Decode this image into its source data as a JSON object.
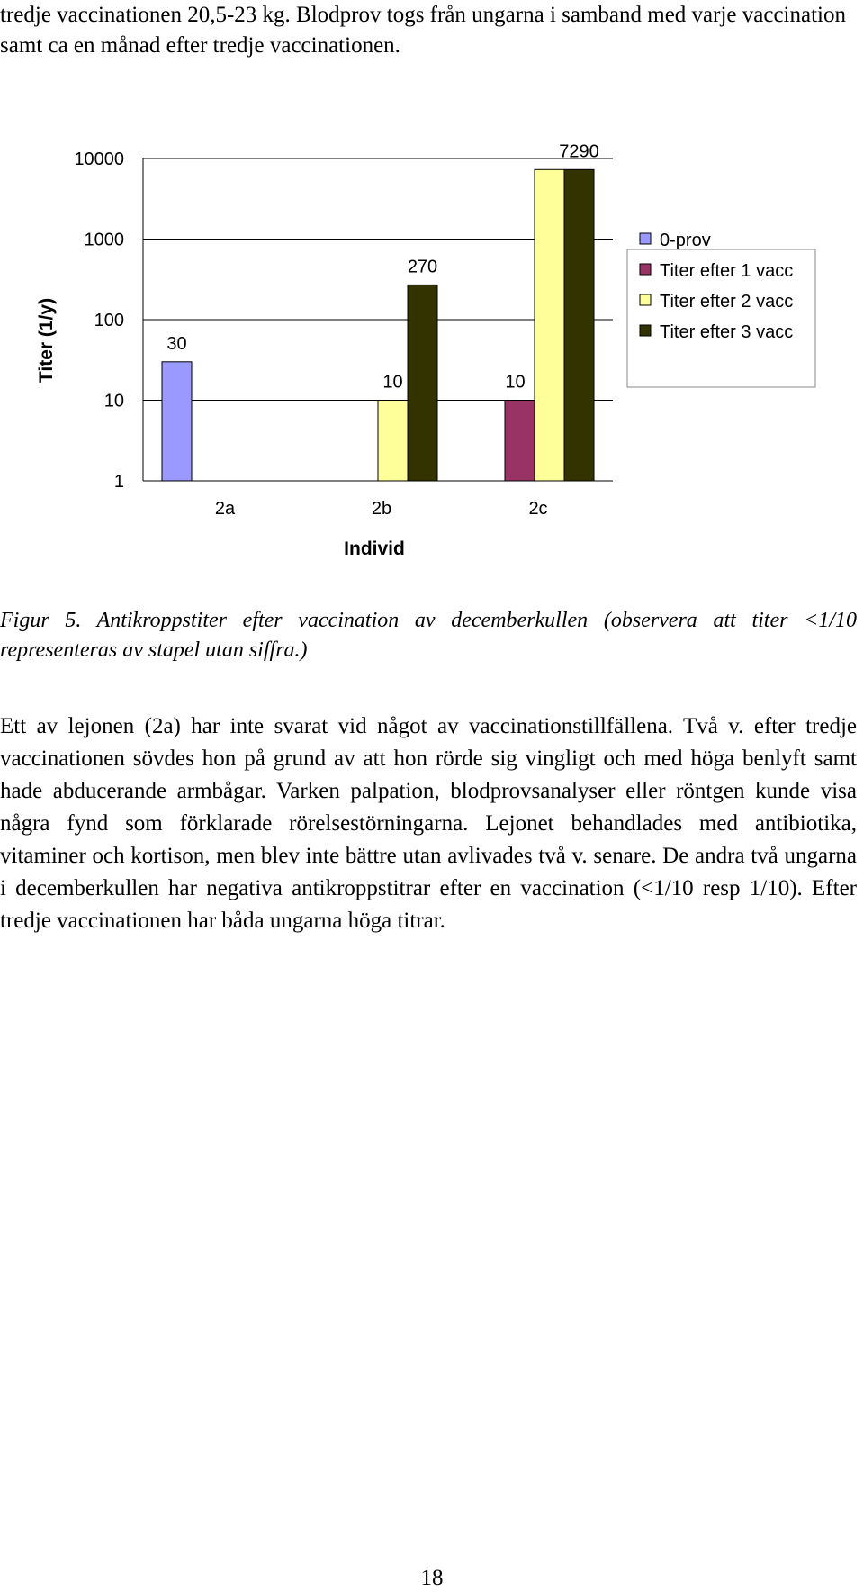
{
  "intro_text": "tredje vaccinationen 20,5-23 kg. Blodprov togs från ungarna i samband med varje vaccination samt ca en månad efter tredje vaccinationen.",
  "chart_data": {
    "type": "bar",
    "scale": "log",
    "ylabel": "Titer (1/y)",
    "xlabel": "Individ",
    "ylim": [
      1,
      10000
    ],
    "y_ticks": [
      "1",
      "10",
      "100",
      "1000",
      "10000"
    ],
    "categories": [
      "2a",
      "2b",
      "2c"
    ],
    "legend_position": "right",
    "series": [
      {
        "name": "0-prov",
        "color": "#9999ff",
        "values": [
          30,
          1,
          1
        ],
        "labels": [
          "30",
          "",
          ""
        ]
      },
      {
        "name": "Titer efter 1 vacc",
        "color": "#993366",
        "values": [
          1,
          1,
          10
        ],
        "labels": [
          "",
          "",
          ""
        ]
      },
      {
        "name": "Titer efter 2 vacc",
        "color": "#ffff99",
        "values": [
          1,
          10,
          7290
        ],
        "labels": [
          "",
          "10",
          ""
        ]
      },
      {
        "name": "Titer efter 3 vacc",
        "color": "#333300",
        "values": [
          1,
          270,
          7290
        ],
        "labels": [
          "",
          "270",
          "7290"
        ]
      }
    ],
    "extra_labels": [
      {
        "category": 2,
        "value": 10,
        "text": "10"
      }
    ]
  },
  "caption": "Figur 5. Antikroppstiter efter vaccination av decemberkullen (observera att titer <1/10 representeras av stapel utan siffra.)",
  "body_text": "Ett av lejonen (2a) har inte svarat vid något av vaccinationstillfällena. Två v. efter tredje vaccinationen sövdes hon på grund av att hon rörde sig vingligt och med höga benlyft samt hade abducerande armbågar. Varken palpation, blodprovsanalyser eller röntgen kunde visa några fynd som förklarade rörelsestörningarna. Lejonet behandlades med antibiotika, vitaminer och kortison, men blev inte bättre utan avlivades två v. senare. De andra två ungarna i decemberkullen har negativa antikroppstitrar efter en vaccination (<1/10 resp 1/10). Efter tredje vaccinationen har båda ungarna höga titrar.",
  "page_number": "18"
}
